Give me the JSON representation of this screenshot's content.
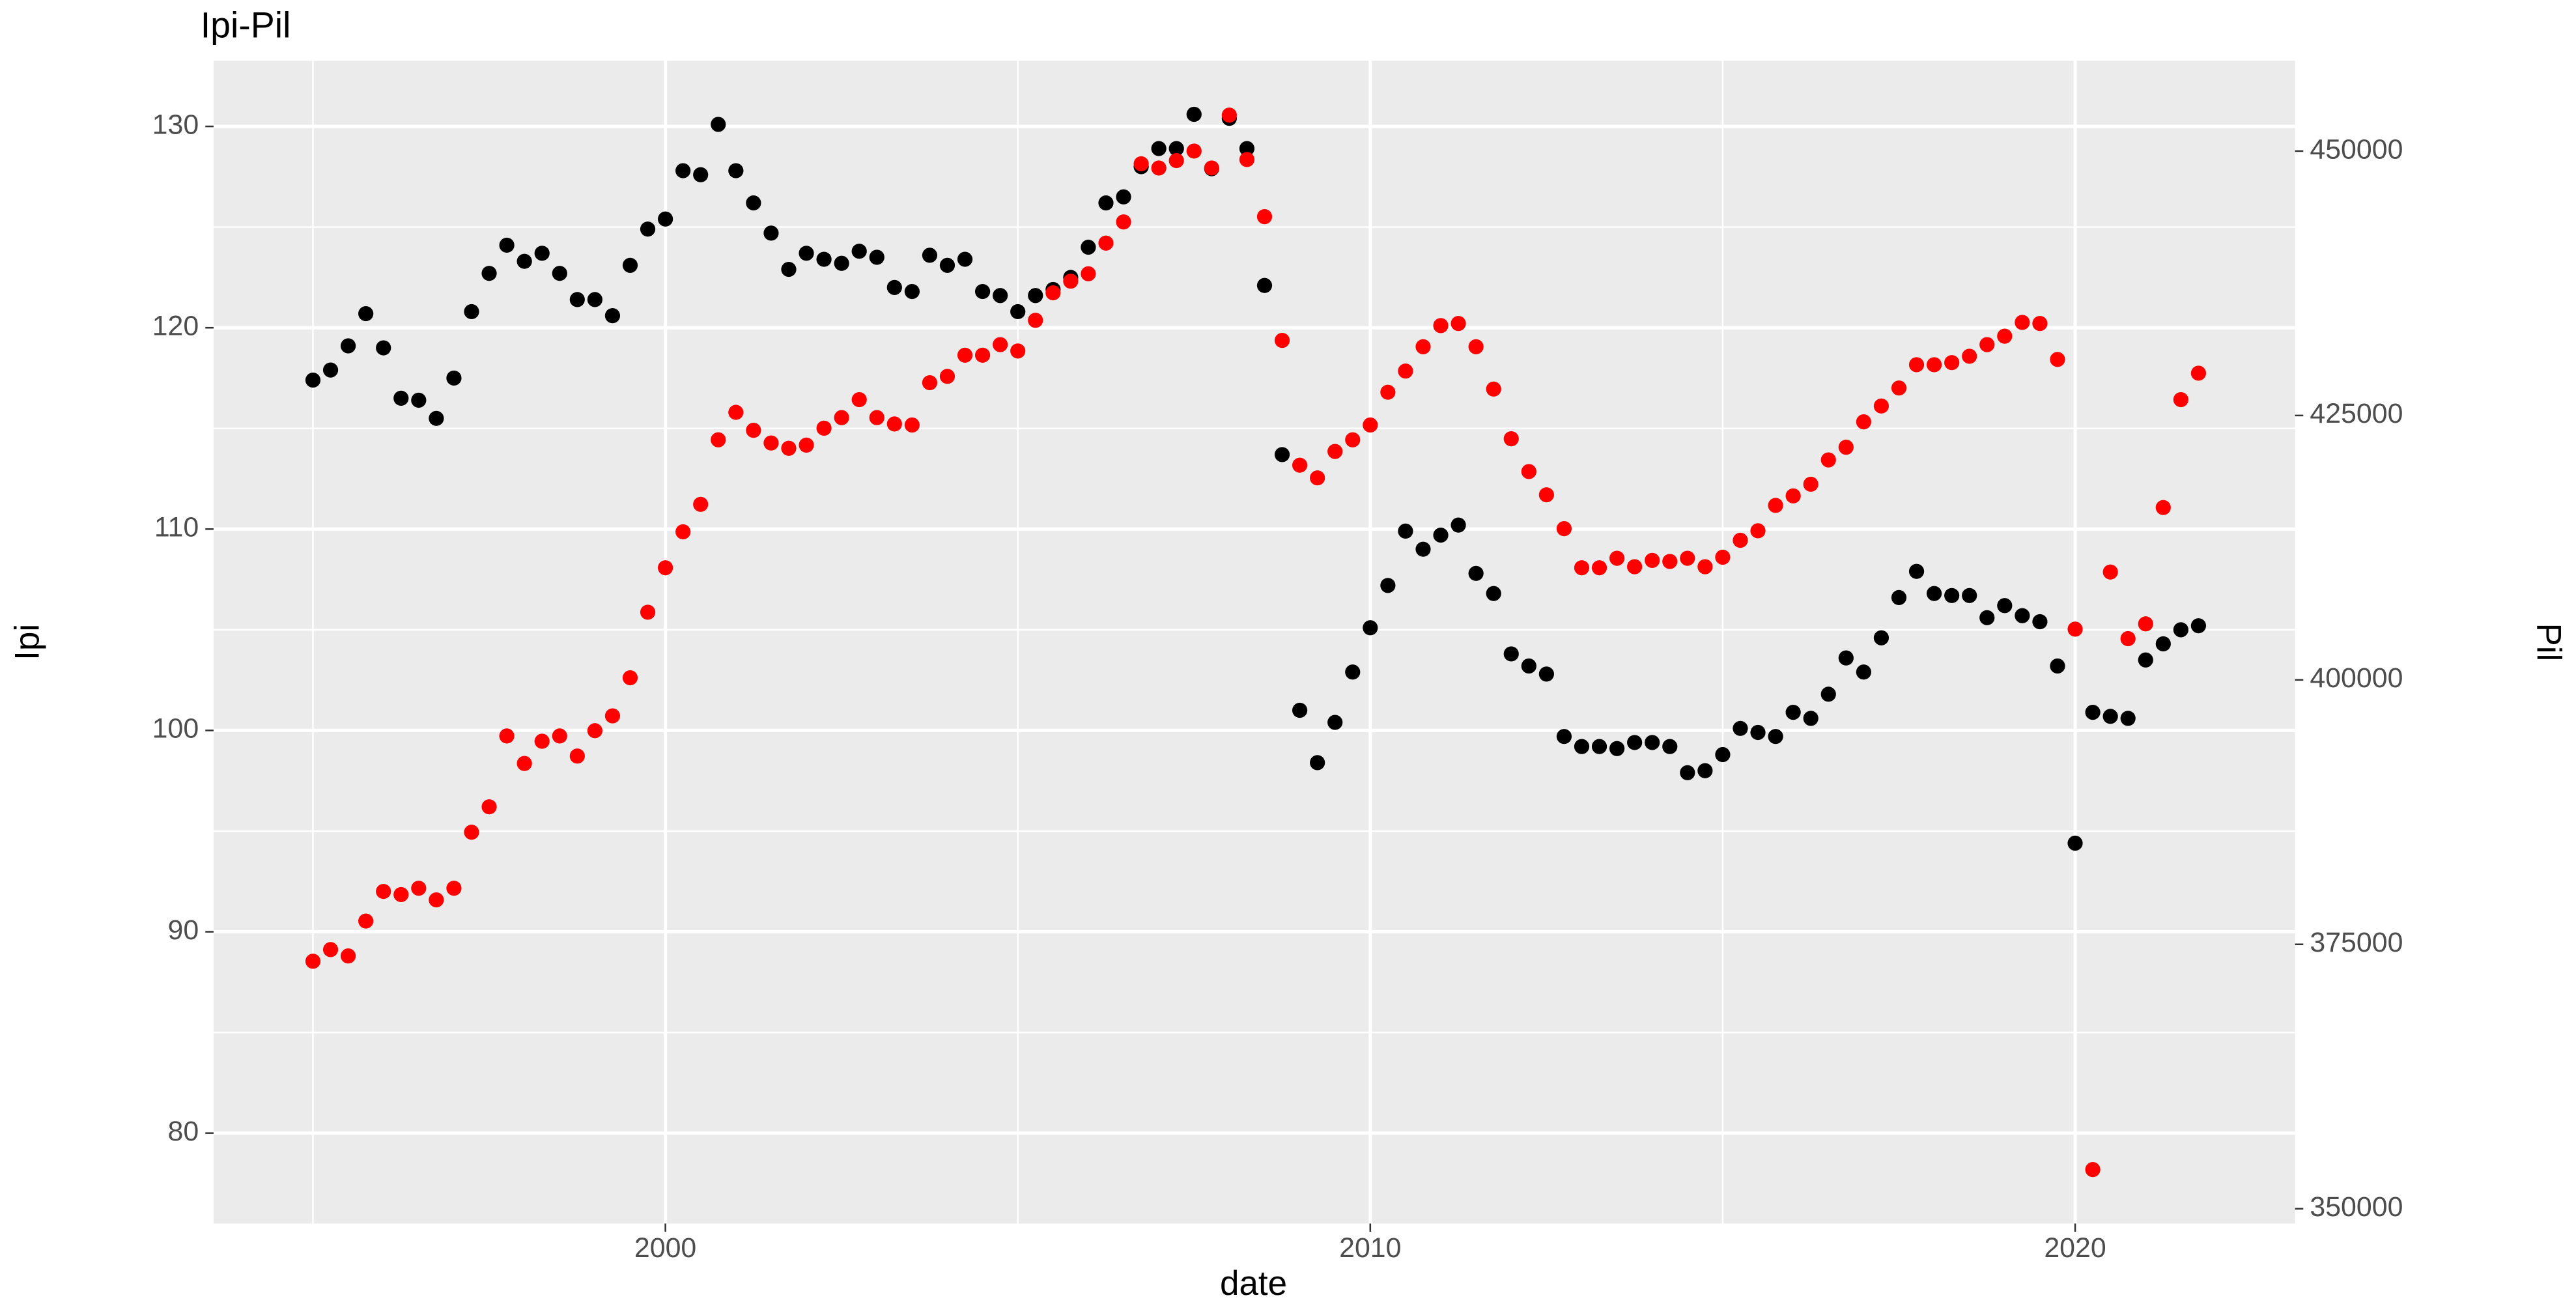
{
  "chart_data": {
    "type": "scatter",
    "title": "Ipi-Pil",
    "x_label": "date",
    "y_label": "Ipi",
    "y2_label": "Pil",
    "x": [
      1995,
      1995.25,
      1995.5,
      1995.75,
      1996,
      1996.25,
      1996.5,
      1996.75,
      1997,
      1997.25,
      1997.5,
      1997.75,
      1998,
      1998.25,
      1998.5,
      1998.75,
      1999,
      1999.25,
      1999.5,
      1999.75,
      2000,
      2000.25,
      2000.5,
      2000.75,
      2001,
      2001.25,
      2001.5,
      2001.75,
      2002,
      2002.25,
      2002.5,
      2002.75,
      2003,
      2003.25,
      2003.5,
      2003.75,
      2004,
      2004.25,
      2004.5,
      2004.75,
      2005,
      2005.25,
      2005.5,
      2005.75,
      2006,
      2006.25,
      2006.5,
      2006.75,
      2007,
      2007.25,
      2007.5,
      2007.75,
      2008,
      2008.25,
      2008.5,
      2008.75,
      2009,
      2009.25,
      2009.5,
      2009.75,
      2010,
      2010.25,
      2010.5,
      2010.75,
      2011,
      2011.25,
      2011.5,
      2011.75,
      2012,
      2012.25,
      2012.5,
      2012.75,
      2013,
      2013.25,
      2013.5,
      2013.75,
      2014,
      2014.25,
      2014.5,
      2014.75,
      2015,
      2015.25,
      2015.5,
      2015.75,
      2016,
      2016.25,
      2016.5,
      2016.75,
      2017,
      2017.25,
      2017.5,
      2017.75,
      2018,
      2018.25,
      2018.5,
      2018.75,
      2019,
      2019.25,
      2019.5,
      2019.75,
      2020,
      2020.25,
      2020.5,
      2020.75,
      2021,
      2021.25,
      2021.5,
      2021.75
    ],
    "series": [
      {
        "color": "#000000",
        "values": [
          117.4,
          117.9,
          119.1,
          120.7,
          119.0,
          116.5,
          116.4,
          115.5,
          117.5,
          120.8,
          122.7,
          124.1,
          123.3,
          123.7,
          122.7,
          121.4,
          121.4,
          120.6,
          123.1,
          124.9,
          125.4,
          127.8,
          127.6,
          130.1,
          127.8,
          126.2,
          124.7,
          122.9,
          123.7,
          123.4,
          123.2,
          123.8,
          123.5,
          122.0,
          121.8,
          123.6,
          123.1,
          123.4,
          121.8,
          121.6,
          120.8,
          121.6,
          121.9,
          122.5,
          124.0,
          126.2,
          126.5,
          128.0,
          128.9,
          128.9,
          130.6,
          127.9,
          130.4,
          128.9,
          122.1,
          113.7,
          101.0,
          98.4,
          100.4,
          102.9,
          105.1,
          107.2,
          109.9,
          109.0,
          109.7,
          110.2,
          107.8,
          106.8,
          103.8,
          103.2,
          102.8,
          99.7,
          99.2,
          99.2,
          99.1,
          99.4,
          99.4,
          99.2,
          97.9,
          98.0,
          98.8,
          100.1,
          99.9,
          99.7,
          100.9,
          100.6,
          101.8,
          103.6,
          102.9,
          104.6,
          106.6,
          107.9,
          106.8,
          106.7,
          106.7,
          105.6,
          106.2,
          105.7,
          105.4,
          103.2,
          94.4,
          100.9,
          100.7,
          100.6,
          103.5,
          104.3,
          105.0,
          105.2
        ]
      },
      {
        "color": "#ff0000",
        "axis": "y2",
        "values": [
          373400,
          374500,
          373900,
          377200,
          380000,
          379700,
          380300,
          379200,
          380300,
          385600,
          388000,
          394700,
          392100,
          394200,
          394700,
          392800,
          395200,
          396600,
          400200,
          406400,
          410600,
          414000,
          416600,
          422700,
          425300,
          423600,
          422400,
          421900,
          422200,
          423800,
          424800,
          426500,
          424800,
          424200,
          424100,
          428100,
          428700,
          430700,
          430700,
          431700,
          431100,
          434000,
          436600,
          437700,
          438400,
          441300,
          443300,
          448800,
          448400,
          449100,
          450000,
          448400,
          453400,
          449200,
          443800,
          432100,
          420300,
          419100,
          421600,
          422700,
          424100,
          427200,
          429200,
          431500,
          433500,
          433700,
          431500,
          427500,
          422800,
          419700,
          417500,
          414300,
          410600,
          410600,
          411500,
          410700,
          411300,
          411200,
          411500,
          410700,
          411600,
          413200,
          414100,
          416500,
          417400,
          418500,
          420800,
          422000,
          424400,
          425900,
          427600,
          429800,
          429800,
          430000,
          430600,
          431700,
          432500,
          433800,
          433700,
          430300,
          404800,
          353700,
          410200,
          403900,
          405300,
          416300,
          426500,
          429000
        ]
      }
    ],
    "xlim": [
      1993.59,
      2023.12
    ],
    "xticks": [
      2000,
      2010,
      2020
    ],
    "x_minor_grid": [
      1995,
      2005,
      2015
    ],
    "ylim": [
      75.51,
      133.26
    ],
    "yticks": [
      80,
      90,
      100,
      110,
      120,
      130
    ],
    "y_minor_grid": [
      85,
      95,
      105,
      115,
      125
    ],
    "y2lim": [
      348600,
      458540
    ],
    "y2ticks": [
      350000,
      375000,
      400000,
      425000,
      450000
    ],
    "grid": true
  }
}
